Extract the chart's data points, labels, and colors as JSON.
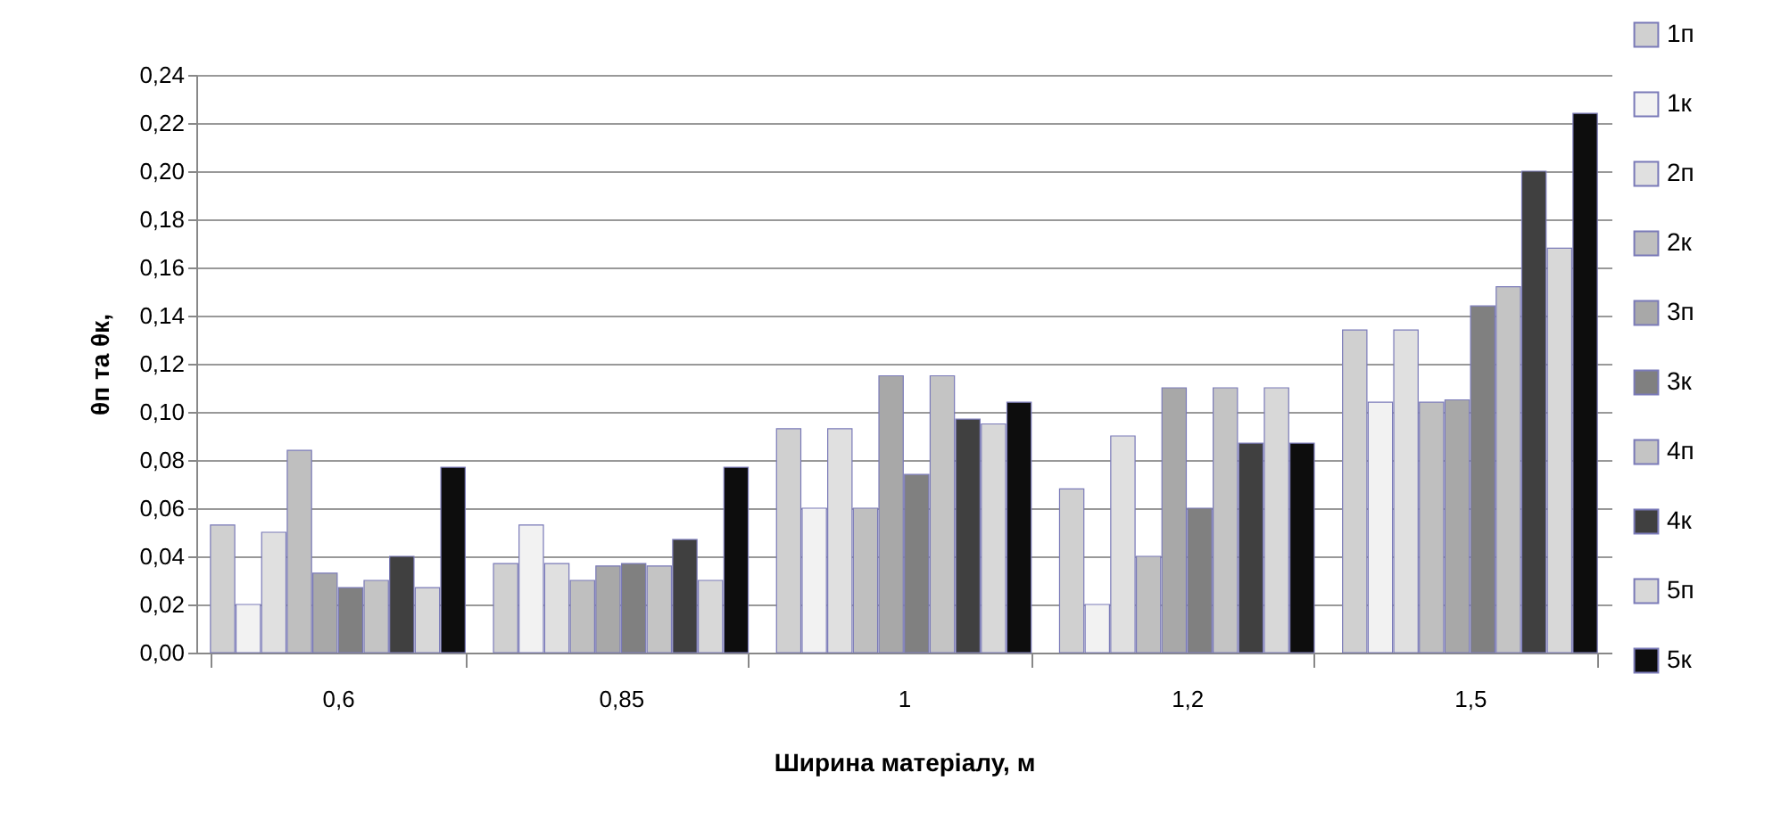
{
  "chart_data": {
    "type": "bar",
    "xlabel": "Ширина матеріалу, м",
    "ylabel": "θп та θк,",
    "categories": [
      "0,6",
      "0,85",
      "1",
      "1,2",
      "1,5"
    ],
    "series": [
      {
        "name": "1п",
        "color": "#d0d0d0",
        "values": [
          0.053,
          0.037,
          0.093,
          0.068,
          0.134
        ]
      },
      {
        "name": "1к",
        "color": "#f2f2f2",
        "values": [
          0.02,
          0.053,
          0.06,
          0.02,
          0.104
        ]
      },
      {
        "name": "2п",
        "color": "#e0e0e0",
        "values": [
          0.05,
          0.037,
          0.093,
          0.09,
          0.134
        ]
      },
      {
        "name": "2к",
        "color": "#bfbfbf",
        "values": [
          0.084,
          0.03,
          0.06,
          0.04,
          0.104
        ]
      },
      {
        "name": "3п",
        "color": "#a8a8a8",
        "values": [
          0.033,
          0.036,
          0.115,
          0.11,
          0.105
        ]
      },
      {
        "name": "3к",
        "color": "#808080",
        "values": [
          0.027,
          0.037,
          0.074,
          0.06,
          0.144
        ]
      },
      {
        "name": "4п",
        "color": "#c4c4c4",
        "values": [
          0.03,
          0.036,
          0.115,
          0.11,
          0.152
        ]
      },
      {
        "name": "4к",
        "color": "#404040",
        "values": [
          0.04,
          0.047,
          0.097,
          0.087,
          0.2
        ]
      },
      {
        "name": "5п",
        "color": "#d8d8d8",
        "values": [
          0.027,
          0.03,
          0.095,
          0.11,
          0.168
        ]
      },
      {
        "name": "5к",
        "color": "#0d0d0d",
        "values": [
          0.077,
          0.077,
          0.104,
          0.087,
          0.224
        ]
      }
    ],
    "ylim": [
      0,
      0.24
    ],
    "yticks": [
      {
        "value": 0,
        "label": "0,00"
      },
      {
        "value": 0.02,
        "label": "0,02"
      },
      {
        "value": 0.04,
        "label": "0,04"
      },
      {
        "value": 0.06,
        "label": "0,06"
      },
      {
        "value": 0.08,
        "label": "0,08"
      },
      {
        "value": 0.1,
        "label": "0,10"
      },
      {
        "value": 0.12,
        "label": "0,12"
      },
      {
        "value": 0.14,
        "label": "0,14"
      },
      {
        "value": 0.16,
        "label": "0,16"
      },
      {
        "value": 0.18,
        "label": "0,18"
      },
      {
        "value": 0.2,
        "label": "0,20"
      },
      {
        "value": 0.22,
        "label": "0,22"
      },
      {
        "value": 0.24,
        "label": "0,24"
      }
    ],
    "grid": true,
    "legend": "right"
  }
}
